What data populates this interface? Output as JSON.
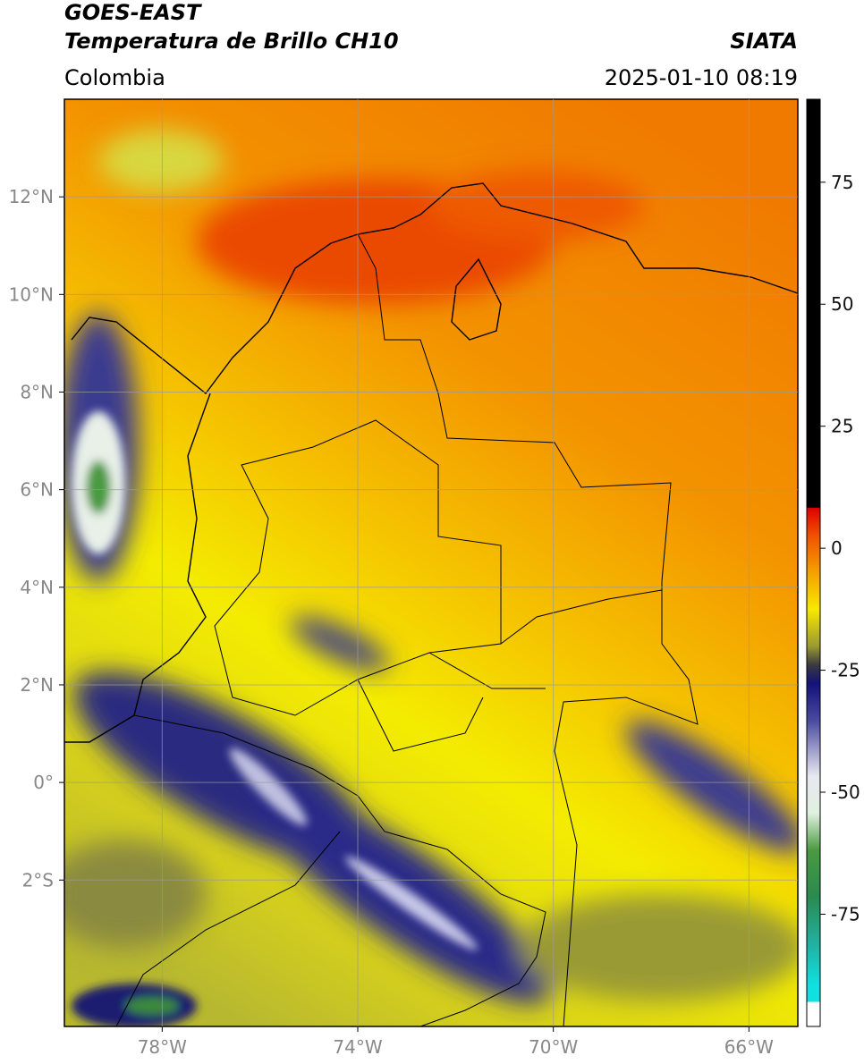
{
  "header": {
    "title_line1": "GOES-EAST",
    "title_line2": "Temperatura de Brillo CH10",
    "source": "SIATA",
    "region": "Colombia",
    "datetime": "2025-01-10 08:19"
  },
  "map": {
    "xlim": [
      -80,
      -65
    ],
    "ylim": [
      -5,
      14
    ],
    "xticks": [
      {
        "value": -78,
        "label": "78°W"
      },
      {
        "value": -74,
        "label": "74°W"
      },
      {
        "value": -70,
        "label": "70°W"
      },
      {
        "value": -66,
        "label": "66°W"
      }
    ],
    "yticks": [
      {
        "value": 12,
        "label": "12°N"
      },
      {
        "value": 10,
        "label": "10°N"
      },
      {
        "value": 8,
        "label": "8°N"
      },
      {
        "value": 6,
        "label": "6°N"
      },
      {
        "value": 4,
        "label": "4°N"
      },
      {
        "value": 2,
        "label": "2°N"
      },
      {
        "value": 0,
        "label": "0°"
      },
      {
        "value": -2,
        "label": "2°S"
      }
    ]
  },
  "colorbar": {
    "lim": [
      -98,
      92
    ],
    "ticks": [
      75,
      50,
      25,
      0,
      -25,
      -50,
      -75
    ]
  }
}
